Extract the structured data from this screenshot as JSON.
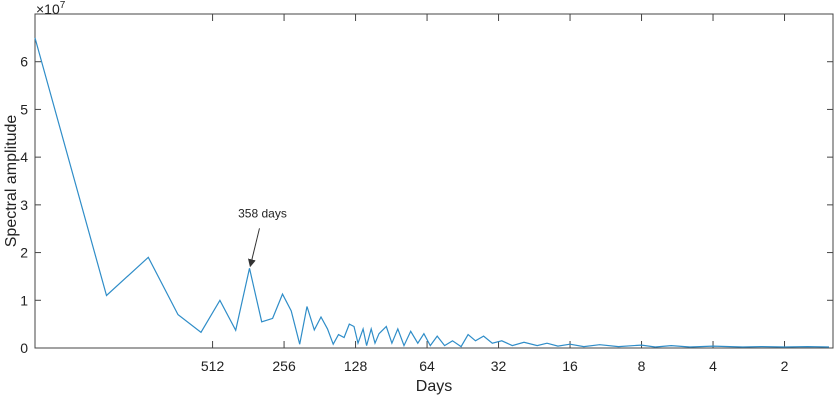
{
  "chart_data": {
    "type": "line",
    "xlabel": "Days",
    "ylabel": "Spectral amplitude",
    "y_multiplier": {
      "base": "×10",
      "exponent": "7"
    },
    "x": [
      2864,
      1432,
      955,
      716,
      573,
      477,
      409,
      358,
      318,
      286,
      260,
      239,
      220,
      205,
      191,
      179,
      168,
      159,
      151,
      143,
      136,
      130,
      125,
      119,
      115,
      110,
      106,
      102,
      95,
      90,
      85,
      80,
      75,
      70,
      66,
      62,
      58,
      54,
      50,
      46,
      43,
      40,
      37,
      34,
      31,
      28,
      25,
      22,
      20,
      18,
      16,
      14,
      12,
      10,
      8,
      7,
      6,
      5,
      4,
      3,
      2.5,
      2,
      1.6,
      1.3
    ],
    "values": [
      6.5,
      1.1,
      1.9,
      0.7,
      0.33,
      1.0,
      0.37,
      1.67,
      0.55,
      0.62,
      1.13,
      0.78,
      0.08,
      0.87,
      0.38,
      0.65,
      0.4,
      0.08,
      0.28,
      0.22,
      0.5,
      0.45,
      0.1,
      0.4,
      0.05,
      0.4,
      0.1,
      0.3,
      0.45,
      0.1,
      0.4,
      0.05,
      0.35,
      0.1,
      0.3,
      0.05,
      0.25,
      0.05,
      0.15,
      0.03,
      0.28,
      0.15,
      0.25,
      0.1,
      0.15,
      0.05,
      0.12,
      0.05,
      0.1,
      0.04,
      0.08,
      0.03,
      0.07,
      0.03,
      0.06,
      0.02,
      0.05,
      0.02,
      0.04,
      0.02,
      0.03,
      0.02,
      0.03,
      0.02
    ],
    "color": "#2f8dc8",
    "xscale": "log",
    "xreverse": true,
    "xlim": [
      2864,
      1.25
    ],
    "xticks": [
      512,
      256,
      128,
      64,
      32,
      16,
      8,
      4,
      2
    ],
    "ylim": [
      0,
      7
    ],
    "yticks": [
      0,
      1,
      2,
      3,
      4,
      5,
      6
    ],
    "annotation": {
      "text": "358 days",
      "x": 358,
      "y": 1.67
    }
  }
}
